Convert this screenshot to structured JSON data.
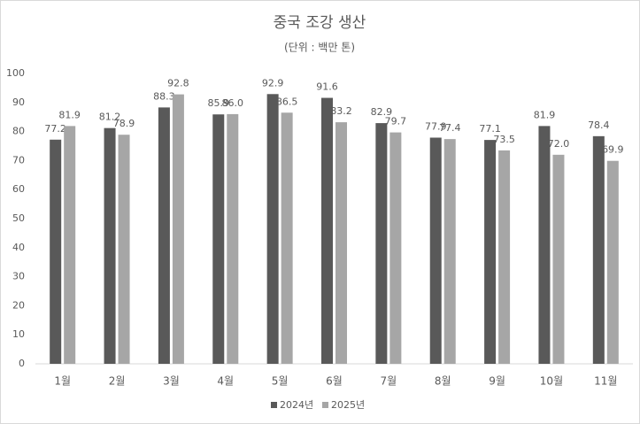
{
  "chart_data": {
    "type": "bar",
    "title": "중국 조강 생산",
    "subtitle": "(단위 : 백만 톤)",
    "categories": [
      "1월",
      "2월",
      "3월",
      "4월",
      "5월",
      "6월",
      "7월",
      "8월",
      "9월",
      "10월",
      "11월"
    ],
    "series": [
      {
        "name": "2024년",
        "color": "#595959",
        "values": [
          77.2,
          81.2,
          88.3,
          85.9,
          92.9,
          91.6,
          82.9,
          77.9,
          77.1,
          81.9,
          78.4
        ],
        "value_labels": [
          "77.2",
          "81.2",
          "88.3",
          "85.9",
          "92.9",
          "91.6",
          "82.9",
          "77.9",
          "77.1",
          "81.9",
          "78.4"
        ]
      },
      {
        "name": "2025년",
        "color": "#a6a6a6",
        "values": [
          81.9,
          78.9,
          92.8,
          86.0,
          86.5,
          83.2,
          79.7,
          77.4,
          73.5,
          72.0,
          69.9
        ],
        "value_labels": [
          "81.9",
          "78.9",
          "92.8",
          "86.0",
          "86.5",
          "83.2",
          "79.7",
          "77.4",
          "73.5",
          "72.0",
          "69.9"
        ]
      }
    ],
    "ylim": [
      0,
      100
    ],
    "yticks": [
      0,
      10,
      20,
      30,
      40,
      50,
      60,
      70,
      80,
      90,
      100
    ],
    "grid": false,
    "legend": "bottom"
  }
}
